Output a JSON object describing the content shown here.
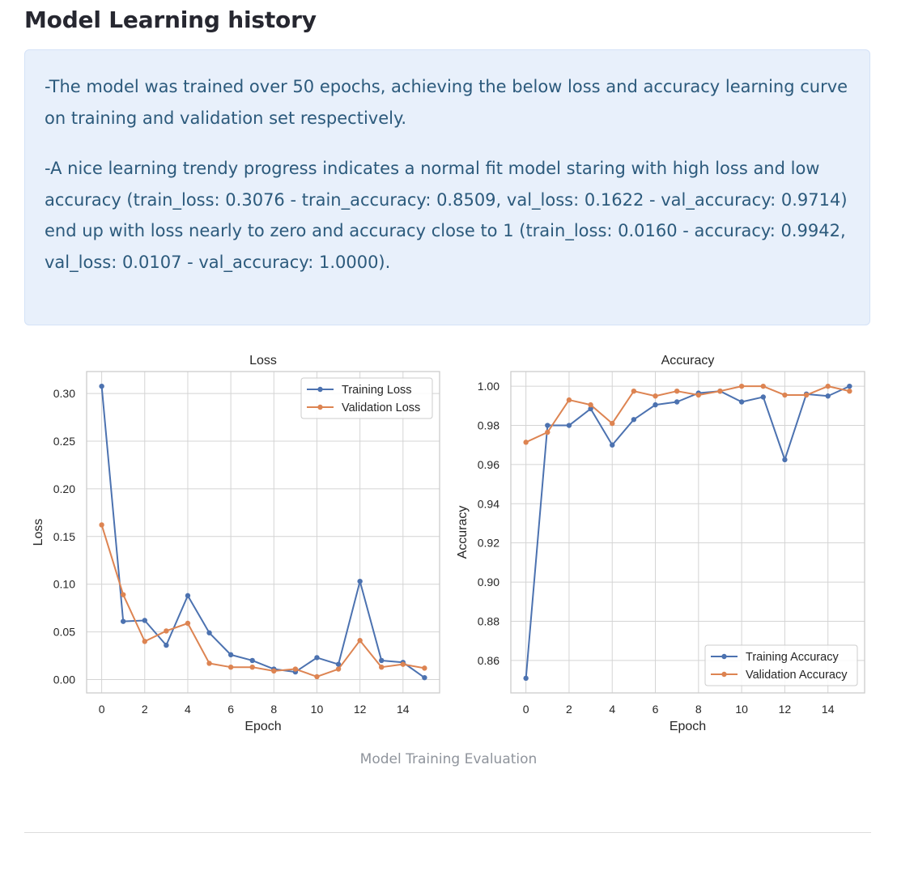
{
  "page": {
    "title": "Model Learning history",
    "caption": "Model Training Evaluation"
  },
  "info": {
    "para1": "-The model was trained over 50 epochs, achieving the below loss and accuracy learning curve on training and validation set respectively.",
    "para2_line1": "-A nice learning trendy progress indicates a normal fit model staring with high loss and low accuracy (train_loss: 0.3076 - train_accuracy: 0.8509, val_loss: 0.1622 - val_accuracy: 0.9714)",
    "para2_line2": "end up with loss nearly to zero and accuracy close to 1 (train_loss: 0.0160 - accuracy: 0.9942, val_loss: 0.0107 - val_accuracy: 1.0000)."
  },
  "colors": {
    "training": "#4c72b0",
    "validation": "#dd8452",
    "grid": "#d4d4d4"
  },
  "chart_data": [
    {
      "type": "line",
      "title": "Loss",
      "xlabel": "Epoch",
      "ylabel": "Loss",
      "x": [
        0,
        1,
        2,
        3,
        4,
        5,
        6,
        7,
        8,
        9,
        10,
        11,
        12,
        13,
        14,
        15
      ],
      "xticks": [
        0,
        2,
        4,
        6,
        8,
        10,
        12,
        14
      ],
      "xtick_labels": [
        "0",
        "2",
        "4",
        "6",
        "8",
        "10",
        "12",
        "14"
      ],
      "yticks": [
        0,
        0.05,
        0.1,
        0.15,
        0.2,
        0.25,
        0.3
      ],
      "ytick_labels": [
        "0.00",
        "0.05",
        "0.10",
        "0.15",
        "0.20",
        "0.25",
        "0.30"
      ],
      "xlim": [
        -0.7,
        15.7
      ],
      "ylim": [
        -0.014,
        0.323
      ],
      "grid": true,
      "legend_position": "upper right",
      "series": [
        {
          "name": "Training Loss",
          "color": "#4c72b0",
          "values": [
            0.3076,
            0.061,
            0.062,
            0.036,
            0.088,
            0.049,
            0.026,
            0.02,
            0.011,
            0.008,
            0.023,
            0.016,
            0.103,
            0.02,
            0.018,
            0.002
          ]
        },
        {
          "name": "Validation Loss",
          "color": "#dd8452",
          "values": [
            0.1622,
            0.089,
            0.04,
            0.051,
            0.059,
            0.017,
            0.013,
            0.013,
            0.009,
            0.011,
            0.003,
            0.011,
            0.041,
            0.013,
            0.016,
            0.012
          ]
        }
      ]
    },
    {
      "type": "line",
      "title": "Accuracy",
      "xlabel": "Epoch",
      "ylabel": "Accuracy",
      "x": [
        0,
        1,
        2,
        3,
        4,
        5,
        6,
        7,
        8,
        9,
        10,
        11,
        12,
        13,
        14,
        15
      ],
      "xticks": [
        0,
        2,
        4,
        6,
        8,
        10,
        12,
        14
      ],
      "xtick_labels": [
        "0",
        "2",
        "4",
        "6",
        "8",
        "10",
        "12",
        "14"
      ],
      "yticks": [
        0.86,
        0.88,
        0.9,
        0.92,
        0.94,
        0.96,
        0.98,
        1.0
      ],
      "ytick_labels": [
        "0.86",
        "0.88",
        "0.90",
        "0.92",
        "0.94",
        "0.96",
        "0.98",
        "1.00"
      ],
      "xlim": [
        -0.7,
        15.7
      ],
      "ylim": [
        0.8434,
        1.0075
      ],
      "grid": true,
      "legend_position": "lower right",
      "series": [
        {
          "name": "Training Accuracy",
          "color": "#4c72b0",
          "values": [
            0.8509,
            0.98,
            0.98,
            0.9885,
            0.97,
            0.983,
            0.9905,
            0.992,
            0.9965,
            0.9975,
            0.992,
            0.9945,
            0.9625,
            0.996,
            0.995,
            1.0
          ]
        },
        {
          "name": "Validation Accuracy",
          "color": "#dd8452",
          "values": [
            0.9714,
            0.9765,
            0.993,
            0.9905,
            0.981,
            0.9975,
            0.995,
            0.9975,
            0.9955,
            0.9975,
            1.0,
            1.0,
            0.9955,
            0.9955,
            1.0,
            0.9975
          ]
        }
      ]
    }
  ]
}
